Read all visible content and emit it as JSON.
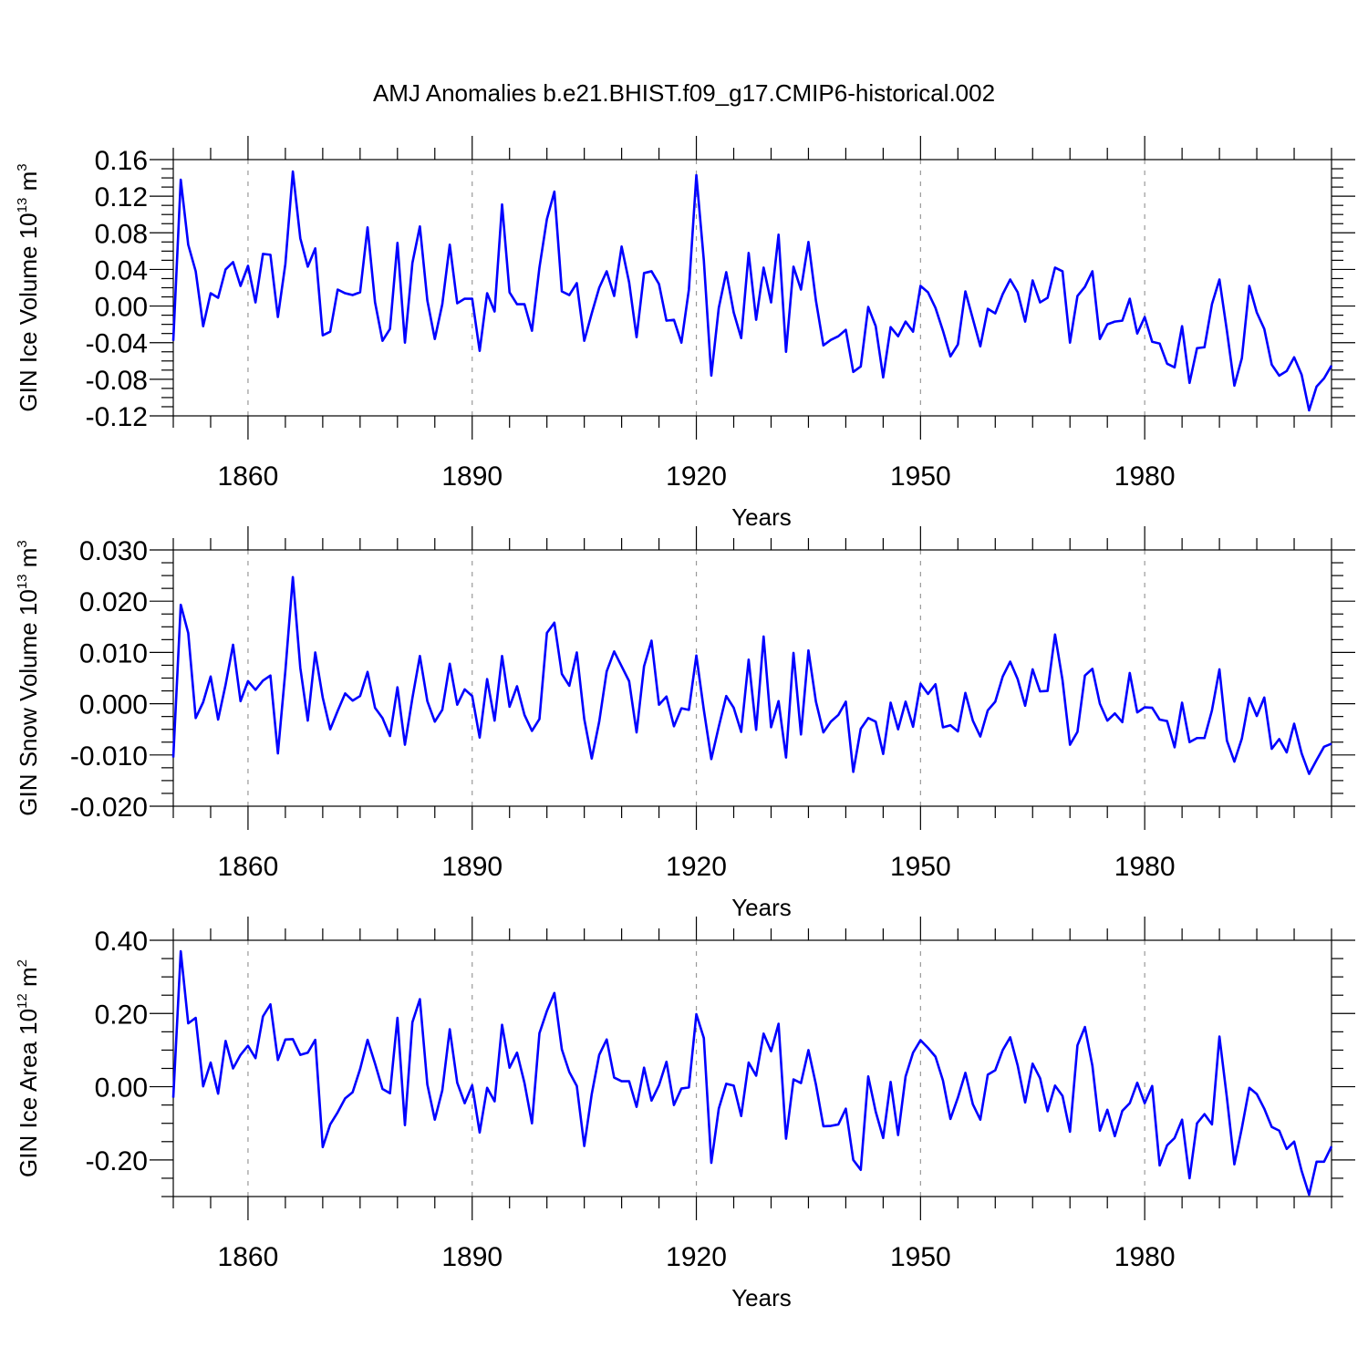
{
  "chart_data": {
    "title": "AMJ Anomalies b.e21.BHIST.f09_g17.CMIP6-historical.002",
    "x_start": 1850,
    "xlim": [
      1850,
      2005
    ],
    "colors": {
      "line": "#0000ff",
      "axis": "#000000",
      "grid": "#999999"
    },
    "panels": [
      {
        "type": "line",
        "ylabel": {
          "text": "GIN Ice Volume 10",
          "exp": "13",
          "unit": " m",
          "unit_exp": "3"
        },
        "xlabel": "Years",
        "ylim": [
          -0.12,
          0.16
        ],
        "yticks": [
          -0.12,
          -0.08,
          -0.04,
          0.0,
          0.04,
          0.08,
          0.12,
          0.16
        ],
        "ytick_labels": [
          "-0.12",
          "-0.08",
          "-0.04",
          "0.00",
          "0.04",
          "0.08",
          "0.12",
          "0.16"
        ],
        "xticks": [
          1860,
          1890,
          1920,
          1950,
          1980
        ],
        "xtick_labels": [
          "1860",
          "1890",
          "1920",
          "1950",
          "1980"
        ],
        "values": [
          -0.038,
          0.138,
          0.067,
          0.038,
          -0.022,
          0.014,
          0.009,
          0.04,
          0.048,
          0.022,
          0.044,
          0.004,
          0.057,
          0.056,
          -0.012,
          0.046,
          0.147,
          0.074,
          0.043,
          0.063,
          -0.032,
          -0.028,
          0.018,
          0.014,
          0.012,
          0.015,
          0.086,
          0.004,
          -0.038,
          -0.025,
          0.069,
          -0.04,
          0.047,
          0.087,
          0.006,
          -0.036,
          0.002,
          0.067,
          0.003,
          0.008,
          0.008,
          -0.049,
          0.014,
          -0.006,
          0.111,
          0.015,
          0.002,
          0.002,
          -0.027,
          0.042,
          0.095,
          0.125,
          0.016,
          0.012,
          0.025,
          -0.038,
          -0.008,
          0.02,
          0.038,
          0.011,
          0.065,
          0.026,
          -0.034,
          0.036,
          0.038,
          0.024,
          -0.016,
          -0.015,
          -0.04,
          0.018,
          0.143,
          0.05,
          -0.076,
          -0.002,
          0.037,
          -0.007,
          -0.035,
          0.058,
          -0.015,
          0.042,
          0.004,
          0.078,
          -0.05,
          0.043,
          0.018,
          0.07,
          0.006,
          -0.043,
          -0.037,
          -0.033,
          -0.026,
          -0.072,
          -0.066,
          -0.001,
          -0.022,
          -0.078,
          -0.023,
          -0.033,
          -0.017,
          -0.028,
          0.022,
          0.015,
          -0.002,
          -0.027,
          -0.055,
          -0.042,
          0.016,
          -0.014,
          -0.044,
          -0.003,
          -0.008,
          0.013,
          0.029,
          0.015,
          -0.017,
          0.028,
          0.004,
          0.009,
          0.042,
          0.038,
          -0.04,
          0.011,
          0.021,
          0.038,
          -0.036,
          -0.02,
          -0.017,
          -0.016,
          0.008,
          -0.03,
          -0.012,
          -0.039,
          -0.041,
          -0.063,
          -0.067,
          -0.022,
          -0.084,
          -0.046,
          -0.045,
          0.002,
          0.029,
          -0.027,
          -0.087,
          -0.057,
          0.022,
          -0.007,
          -0.025,
          -0.064,
          -0.076,
          -0.071,
          -0.056,
          -0.075,
          -0.114,
          -0.088,
          -0.079,
          -0.065
        ]
      },
      {
        "type": "line",
        "ylabel": {
          "text": "GIN Snow Volume 10",
          "exp": "13",
          "unit": " m",
          "unit_exp": "3"
        },
        "xlabel": "Years",
        "ylim": [
          -0.02,
          0.03
        ],
        "yticks": [
          -0.02,
          -0.01,
          0.0,
          0.01,
          0.02,
          0.03
        ],
        "ytick_labels": [
          "-0.020",
          "-0.010",
          "0.000",
          "0.010",
          "0.020",
          "0.030"
        ],
        "xticks": [
          1860,
          1890,
          1920,
          1950,
          1980
        ],
        "xtick_labels": [
          "1860",
          "1890",
          "1920",
          "1950",
          "1980"
        ],
        "values": [
          -0.0105,
          0.0193,
          0.0138,
          -0.0028,
          0.0003,
          0.0053,
          -0.0031,
          0.0037,
          0.0115,
          0.0005,
          0.0044,
          0.0027,
          0.0045,
          0.0055,
          -0.0097,
          0.0064,
          0.0247,
          0.007,
          -0.0033,
          0.01,
          0.0012,
          -0.005,
          -0.0014,
          0.002,
          0.0006,
          0.0015,
          0.0062,
          -0.0008,
          -0.0028,
          -0.0063,
          0.0032,
          -0.008,
          0.0011,
          0.0093,
          0.0005,
          -0.0035,
          -0.0012,
          0.0078,
          -0.0002,
          0.0028,
          0.0015,
          -0.0066,
          0.0048,
          -0.0033,
          0.0093,
          -0.0006,
          0.0034,
          -0.0022,
          -0.0053,
          -0.003,
          0.0138,
          0.0158,
          0.0058,
          0.0035,
          0.01,
          -0.003,
          -0.0107,
          -0.0035,
          0.0063,
          0.0102,
          0.0073,
          0.0044,
          -0.0056,
          0.0073,
          0.0123,
          -0.0002,
          0.0014,
          -0.0044,
          -0.0009,
          -0.0012,
          0.0094,
          -0.0012,
          -0.0108,
          -0.0045,
          0.0015,
          -0.0008,
          -0.0055,
          0.0086,
          -0.0051,
          0.0131,
          -0.0046,
          0.0005,
          -0.0105,
          0.0099,
          -0.006,
          0.0104,
          0.0004,
          -0.0056,
          -0.0035,
          -0.0022,
          0.0004,
          -0.0133,
          -0.0049,
          -0.0028,
          -0.0035,
          -0.0098,
          0.0002,
          -0.005,
          0.0004,
          -0.0045,
          0.0039,
          0.0019,
          0.0038,
          -0.0046,
          -0.0042,
          -0.0054,
          0.0021,
          -0.0033,
          -0.0064,
          -0.0013,
          0.0004,
          0.0053,
          0.0082,
          0.0048,
          -0.0004,
          0.0067,
          0.0024,
          0.0025,
          0.0135,
          0.0046,
          -0.008,
          -0.0055,
          0.0055,
          0.0068,
          0.0,
          -0.0033,
          -0.0019,
          -0.0036,
          0.006,
          -0.0017,
          -0.0007,
          -0.0008,
          -0.0031,
          -0.0034,
          -0.0085,
          0.0002,
          -0.0075,
          -0.0067,
          -0.0067,
          -0.0013,
          0.0067,
          -0.0072,
          -0.0113,
          -0.0068,
          0.0011,
          -0.0024,
          0.0012,
          -0.0088,
          -0.0069,
          -0.0095,
          -0.0039,
          -0.0097,
          -0.0137,
          -0.011,
          -0.0084,
          -0.0078
        ]
      },
      {
        "type": "line",
        "ylabel": {
          "text": "GIN Ice Area 10",
          "exp": "12",
          "unit": " m",
          "unit_exp": "2"
        },
        "xlabel": "Years",
        "ylim": [
          -0.3,
          0.4
        ],
        "yticks": [
          -0.2,
          0.0,
          0.2,
          0.4
        ],
        "ytick_labels": [
          "-0.20",
          "0.00",
          "0.20",
          "0.40"
        ],
        "xticks": [
          1860,
          1890,
          1920,
          1950,
          1980
        ],
        "xtick_labels": [
          "1860",
          "1890",
          "1920",
          "1950",
          "1980"
        ],
        "values": [
          -0.03,
          0.37,
          0.173,
          0.188,
          0.001,
          0.066,
          -0.019,
          0.125,
          0.05,
          0.087,
          0.112,
          0.078,
          0.192,
          0.225,
          0.073,
          0.129,
          0.13,
          0.087,
          0.093,
          0.128,
          -0.165,
          -0.103,
          -0.07,
          -0.032,
          -0.015,
          0.048,
          0.128,
          0.063,
          -0.006,
          -0.018,
          0.188,
          -0.105,
          0.176,
          0.239,
          0.006,
          -0.09,
          -0.01,
          0.157,
          0.011,
          -0.045,
          0.004,
          -0.125,
          -0.003,
          -0.04,
          0.169,
          0.052,
          0.093,
          0.01,
          -0.1,
          0.146,
          0.207,
          0.256,
          0.102,
          0.04,
          0.002,
          -0.162,
          -0.02,
          0.087,
          0.129,
          0.025,
          0.015,
          0.015,
          -0.055,
          0.052,
          -0.038,
          0.004,
          0.068,
          -0.05,
          -0.005,
          -0.002,
          0.198,
          0.133,
          -0.208,
          -0.06,
          0.008,
          0.003,
          -0.08,
          0.066,
          0.03,
          0.145,
          0.097,
          0.172,
          -0.142,
          0.02,
          0.01,
          0.1,
          0.006,
          -0.108,
          -0.107,
          -0.103,
          -0.06,
          -0.2,
          -0.227,
          0.028,
          -0.068,
          -0.14,
          0.013,
          -0.132,
          0.028,
          0.093,
          0.127,
          0.106,
          0.082,
          0.017,
          -0.088,
          -0.03,
          0.038,
          -0.048,
          -0.09,
          0.033,
          0.045,
          0.1,
          0.135,
          0.058,
          -0.043,
          0.063,
          0.023,
          -0.067,
          0.003,
          -0.025,
          -0.123,
          0.113,
          0.163,
          0.057,
          -0.12,
          -0.063,
          -0.135,
          -0.066,
          -0.045,
          0.011,
          -0.045,
          0.002,
          -0.215,
          -0.16,
          -0.14,
          -0.09,
          -0.25,
          -0.1,
          -0.075,
          -0.103,
          0.137,
          -0.03,
          -0.212,
          -0.113,
          -0.003,
          -0.02,
          -0.06,
          -0.11,
          -0.12,
          -0.17,
          -0.15,
          -0.23,
          -0.295,
          -0.205,
          -0.205,
          -0.163
        ]
      }
    ]
  }
}
